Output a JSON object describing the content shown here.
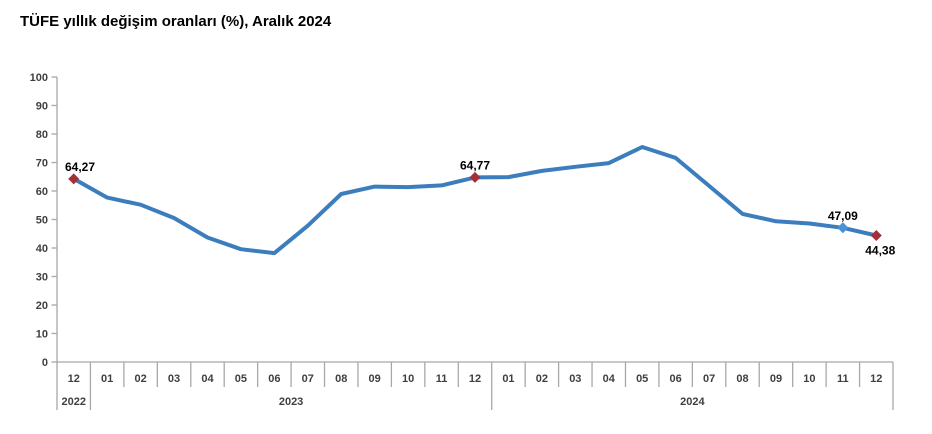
{
  "title": "TÜFE yıllık değişim oranları (%), Aralık 2024",
  "colors": {
    "line": "#3C7DBE",
    "marker_red": "#A13138",
    "marker_blue": "#4C92D2",
    "axis": "#A8A8A8",
    "tick_text": "#3F3F3F",
    "label_text": "#000000"
  },
  "chart_data": {
    "type": "line",
    "title": "TÜFE yıllık değişim oranları (%), Aralık 2024",
    "ylabel": "",
    "xlabel": "",
    "ylim": [
      0,
      100
    ],
    "yticks": [
      0,
      10,
      20,
      30,
      40,
      50,
      60,
      70,
      80,
      90,
      100
    ],
    "grid": false,
    "legend": "none",
    "categories": [
      "12",
      "01",
      "02",
      "03",
      "04",
      "05",
      "06",
      "07",
      "08",
      "09",
      "10",
      "11",
      "12",
      "01",
      "02",
      "03",
      "04",
      "05",
      "06",
      "07",
      "08",
      "09",
      "10",
      "11",
      "12"
    ],
    "year_groups": [
      {
        "label": "2022",
        "span": 1
      },
      {
        "label": "2023",
        "span": 12
      },
      {
        "label": "2024",
        "span": 12
      }
    ],
    "series": [
      {
        "name": "TÜFE yıllık değişim oranı (%)",
        "values": [
          64.27,
          57.68,
          55.18,
          50.51,
          43.68,
          39.59,
          38.21,
          47.83,
          58.94,
          61.53,
          61.36,
          61.98,
          64.77,
          64.86,
          67.07,
          68.5,
          69.8,
          75.45,
          71.6,
          61.78,
          51.97,
          49.38,
          48.58,
          47.09,
          44.38
        ]
      }
    ],
    "labeled_points": [
      {
        "index": 0,
        "label": "64,27",
        "position": "above",
        "marker": "red"
      },
      {
        "index": 12,
        "label": "64,77",
        "position": "above",
        "marker": "red"
      },
      {
        "index": 23,
        "label": "47,09",
        "position": "above",
        "marker": "blue"
      },
      {
        "index": 24,
        "label": "44,38",
        "position": "below",
        "marker": "red"
      }
    ]
  }
}
